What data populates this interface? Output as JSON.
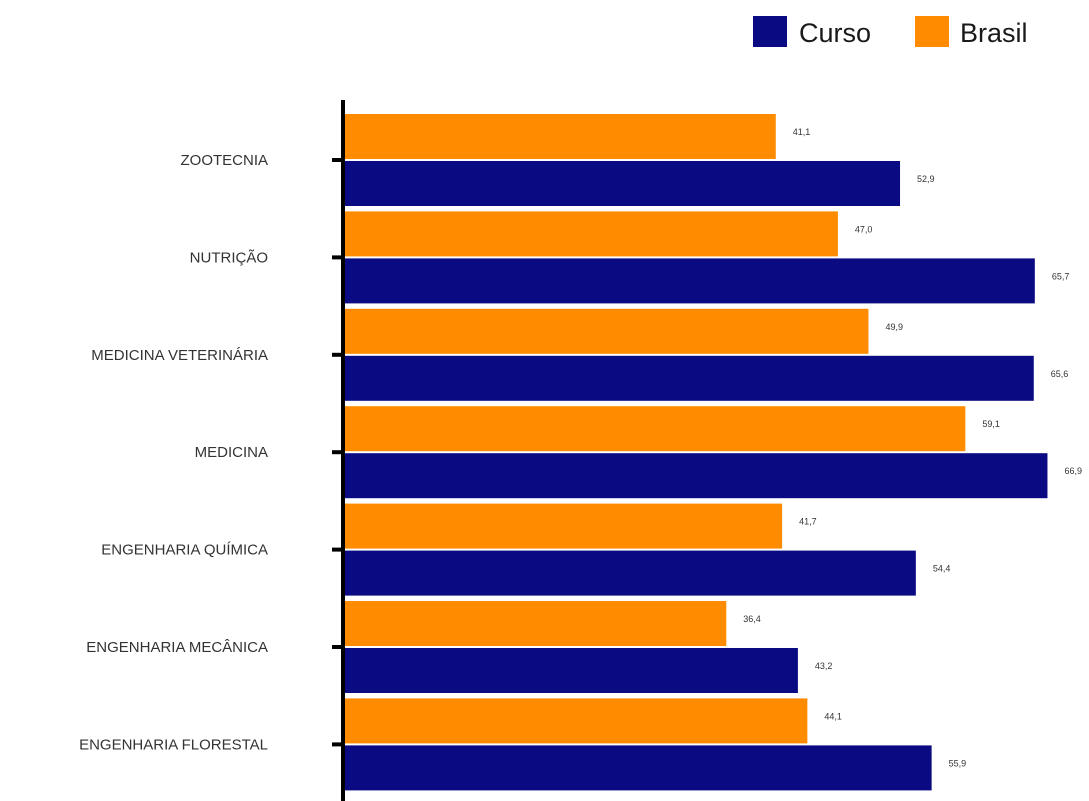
{
  "chart_data": {
    "type": "bar",
    "orientation": "horizontal",
    "title": "",
    "xlabel": "",
    "ylabel": "",
    "xlim": [
      0,
      67
    ],
    "grid": false,
    "legend_position": "top-right",
    "categories": [
      "ZOOTECNIA",
      "NUTRIÇÃO",
      "MEDICINA VETERINÁRIA",
      "MEDICINA",
      "ENGENHARIA QUÍMICA",
      "ENGENHARIA MECÂNICA",
      "ENGENHARIA FLORESTAL"
    ],
    "series": [
      {
        "name": "Brasil",
        "color": "#ff8c00",
        "values": [
          41.1,
          47.0,
          49.9,
          59.1,
          41.7,
          36.4,
          44.1
        ],
        "labels": [
          "41,1",
          "47,0",
          "49,9",
          "59,1",
          "41,7",
          "36,4",
          "44,1"
        ]
      },
      {
        "name": "Curso",
        "color": "#0a0a82",
        "values": [
          52.9,
          65.7,
          65.6,
          66.9,
          54.4,
          43.2,
          55.9
        ],
        "labels": [
          "52,9",
          "65,7",
          "65,6",
          "66,9",
          "54,4",
          "43,2",
          "55,9"
        ]
      }
    ],
    "legend": [
      "Curso",
      "Brasil"
    ]
  }
}
